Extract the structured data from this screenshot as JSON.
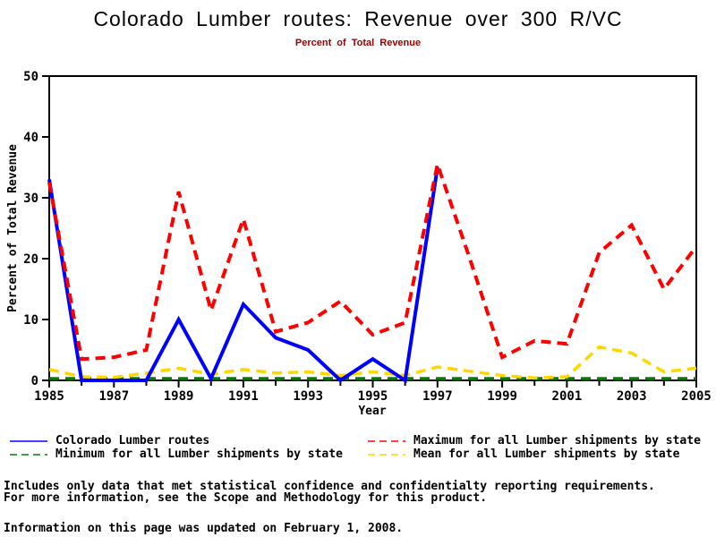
{
  "header": {
    "title": "Colorado Lumber routes: Revenue over 300 R/VC",
    "subtitle": "Percent of Total Revenue",
    "subtitle_color": "#990000"
  },
  "chart_data": {
    "type": "line",
    "title": "Colorado Lumber routes: Revenue over 300 R/VC",
    "subtitle": "Percent of Total Revenue",
    "xlabel": "Year",
    "ylabel": "Percent of Total Revenue",
    "xlim": [
      1985,
      2005
    ],
    "ylim": [
      0,
      50
    ],
    "yticks": [
      0,
      10,
      20,
      30,
      40,
      50
    ],
    "xticks_labeled": [
      1985,
      1987,
      1989,
      1991,
      1993,
      1995,
      1997,
      1999,
      2001,
      2003,
      2005
    ],
    "minor_ticks_every_year": true,
    "grid": false,
    "frame": true,
    "legend_position": "bottom",
    "x": [
      1985,
      1986,
      1987,
      1988,
      1989,
      1990,
      1991,
      1992,
      1993,
      1994,
      1995,
      1996,
      1997,
      1998,
      1999,
      2000,
      2001,
      2002,
      2003,
      2004,
      2005
    ],
    "series": [
      {
        "name": "Colorado Lumber routes",
        "color": "#0000FF",
        "style": "solid",
        "width": 4,
        "values": [
          33,
          0,
          0,
          0,
          10,
          0.3,
          12.5,
          7,
          5,
          0,
          3.5,
          0,
          35,
          null,
          null,
          null,
          null,
          null,
          null,
          null,
          null
        ]
      },
      {
        "name": "Minimum for all Lumber shipments by state",
        "color": "#008000",
        "style": "dashed",
        "width": 3.5,
        "values": [
          0.3,
          0.3,
          0.3,
          0.3,
          0.3,
          0.3,
          0.3,
          0.3,
          0.3,
          0.3,
          0.3,
          0.3,
          0.3,
          0.3,
          0.3,
          0.3,
          0.3,
          0.3,
          0.3,
          0.3,
          0.3
        ]
      },
      {
        "name": "Maximum for all Lumber shipments by state",
        "color": "#FF0000",
        "style": "dashed",
        "width": 4,
        "values": [
          32.5,
          3.5,
          3.8,
          5,
          31,
          11.5,
          26.5,
          8,
          9.5,
          13,
          7.5,
          9.5,
          35.5,
          20,
          3.8,
          6.5,
          6,
          21,
          25.5,
          15,
          22
        ]
      },
      {
        "name": "Mean for all Lumber shipments by state",
        "color": "#FFD700",
        "style": "dashed",
        "width": 3.5,
        "values": [
          1.8,
          0.6,
          0.5,
          1.2,
          2,
          1,
          1.8,
          1.2,
          1.4,
          0.8,
          1.4,
          0.8,
          2.2,
          1.5,
          0.8,
          0.4,
          0.6,
          5.5,
          4.5,
          1.4,
          2
        ]
      }
    ],
    "draw_order": [
      1,
      3,
      0,
      2
    ]
  },
  "legend": {
    "items": [
      {
        "series": 0,
        "label": "Colorado Lumber routes",
        "col": 0,
        "row": 0
      },
      {
        "series": 2,
        "label": "Maximum for all Lumber shipments by state",
        "col": 1,
        "row": 0
      },
      {
        "series": 1,
        "label": "Minimum for all Lumber shipments by state",
        "col": 0,
        "row": 1
      },
      {
        "series": 3,
        "label": "Mean for all Lumber shipments by state",
        "col": 1,
        "row": 1
      }
    ]
  },
  "footer": {
    "line1": "Includes only data that met statistical confidence and confidentialty reporting requirements.",
    "line2": "For more information, see the Scope and Methodology for this product.",
    "updated": "Information on this page was updated on February 1, 2008."
  }
}
